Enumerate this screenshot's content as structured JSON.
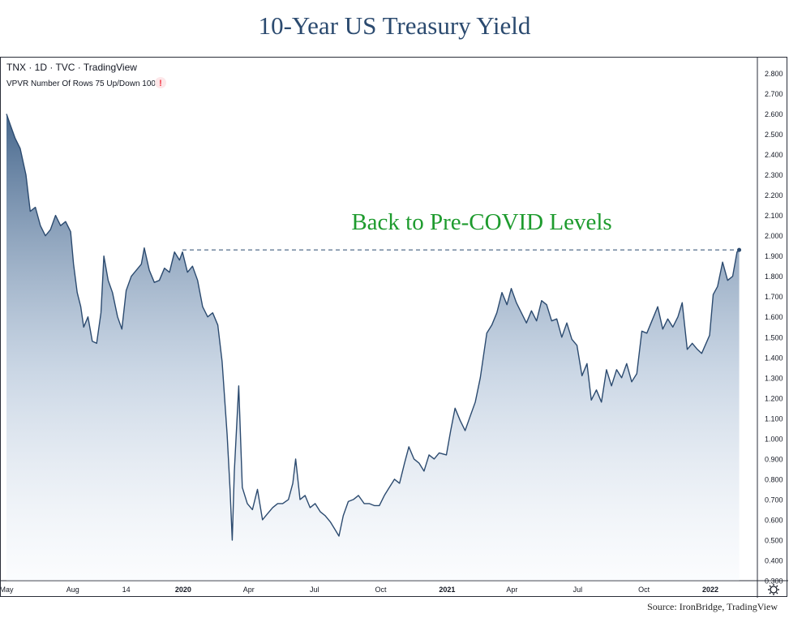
{
  "title": "10-Year US Treasury Yield",
  "source": "Source: IronBridge, TradingView",
  "header": {
    "symbol_line": "TNX · 1D · TVC · TradingView",
    "indicator_line": "VPVR Number Of Rows 75 Up/Down 100",
    "warning_glyph": "!"
  },
  "chart_data": {
    "type": "area",
    "title": "10-Year US Treasury Yield",
    "annotation": "Back to Pre-COVID Levels",
    "reference_level": 1.93,
    "ylim": [
      0.3,
      2.83
    ],
    "y_ticks": [
      "2.800",
      "2.700",
      "2.600",
      "2.500",
      "2.400",
      "2.300",
      "2.200",
      "2.100",
      "2.000",
      "1.900",
      "1.800",
      "1.700",
      "1.600",
      "1.500",
      "1.400",
      "1.300",
      "1.200",
      "1.100",
      "1.000",
      "0.900",
      "0.800",
      "0.700",
      "0.600",
      "0.500",
      "0.400",
      "0.300"
    ],
    "x_ticks": [
      {
        "label": "May",
        "date": "2019-05-01"
      },
      {
        "label": "Aug",
        "date": "2019-08-01"
      },
      {
        "label": "14",
        "date": "2019-10-14"
      },
      {
        "label": "2020",
        "date": "2020-01-01"
      },
      {
        "label": "Apr",
        "date": "2020-04-01"
      },
      {
        "label": "Jul",
        "date": "2020-07-01"
      },
      {
        "label": "Oct",
        "date": "2020-10-01"
      },
      {
        "label": "2021",
        "date": "2021-01-01"
      },
      {
        "label": "Apr",
        "date": "2021-04-01"
      },
      {
        "label": "Jul",
        "date": "2021-07-01"
      },
      {
        "label": "Oct",
        "date": "2021-10-01"
      },
      {
        "label": "2022",
        "date": "2022-01-01"
      }
    ],
    "x_range": [
      "2019-05-01",
      "2022-02-15"
    ],
    "series": [
      {
        "points": [
          [
            "2019-05-01",
            2.6
          ],
          [
            "2019-05-06",
            2.55
          ],
          [
            "2019-05-13",
            2.48
          ],
          [
            "2019-05-20",
            2.43
          ],
          [
            "2019-05-28",
            2.3
          ],
          [
            "2019-06-03",
            2.12
          ],
          [
            "2019-06-10",
            2.14
          ],
          [
            "2019-06-17",
            2.05
          ],
          [
            "2019-06-24",
            2.0
          ],
          [
            "2019-07-01",
            2.03
          ],
          [
            "2019-07-08",
            2.1
          ],
          [
            "2019-07-15",
            2.05
          ],
          [
            "2019-07-22",
            2.07
          ],
          [
            "2019-07-29",
            2.02
          ],
          [
            "2019-08-02",
            1.86
          ],
          [
            "2019-08-07",
            1.72
          ],
          [
            "2019-08-12",
            1.65
          ],
          [
            "2019-08-16",
            1.55
          ],
          [
            "2019-08-22",
            1.6
          ],
          [
            "2019-08-28",
            1.48
          ],
          [
            "2019-09-03",
            1.47
          ],
          [
            "2019-09-09",
            1.62
          ],
          [
            "2019-09-13",
            1.9
          ],
          [
            "2019-09-19",
            1.78
          ],
          [
            "2019-09-25",
            1.72
          ],
          [
            "2019-10-02",
            1.6
          ],
          [
            "2019-10-08",
            1.54
          ],
          [
            "2019-10-14",
            1.73
          ],
          [
            "2019-10-21",
            1.8
          ],
          [
            "2019-10-28",
            1.83
          ],
          [
            "2019-11-04",
            1.86
          ],
          [
            "2019-11-08",
            1.94
          ],
          [
            "2019-11-15",
            1.83
          ],
          [
            "2019-11-22",
            1.77
          ],
          [
            "2019-11-29",
            1.78
          ],
          [
            "2019-12-06",
            1.84
          ],
          [
            "2019-12-13",
            1.82
          ],
          [
            "2019-12-20",
            1.92
          ],
          [
            "2019-12-27",
            1.88
          ],
          [
            "2019-12-31",
            1.92
          ],
          [
            "2020-01-07",
            1.82
          ],
          [
            "2020-01-14",
            1.85
          ],
          [
            "2020-01-21",
            1.78
          ],
          [
            "2020-01-28",
            1.65
          ],
          [
            "2020-02-04",
            1.6
          ],
          [
            "2020-02-11",
            1.62
          ],
          [
            "2020-02-18",
            1.56
          ],
          [
            "2020-02-24",
            1.38
          ],
          [
            "2020-03-02",
            1.02
          ],
          [
            "2020-03-06",
            0.75
          ],
          [
            "2020-03-09",
            0.5
          ],
          [
            "2020-03-12",
            0.84
          ],
          [
            "2020-03-18",
            1.26
          ],
          [
            "2020-03-23",
            0.76
          ],
          [
            "2020-03-30",
            0.68
          ],
          [
            "2020-04-06",
            0.65
          ],
          [
            "2020-04-13",
            0.75
          ],
          [
            "2020-04-20",
            0.6
          ],
          [
            "2020-04-27",
            0.63
          ],
          [
            "2020-05-04",
            0.66
          ],
          [
            "2020-05-11",
            0.68
          ],
          [
            "2020-05-18",
            0.68
          ],
          [
            "2020-05-26",
            0.7
          ],
          [
            "2020-06-01",
            0.78
          ],
          [
            "2020-06-05",
            0.9
          ],
          [
            "2020-06-11",
            0.7
          ],
          [
            "2020-06-18",
            0.72
          ],
          [
            "2020-06-25",
            0.66
          ],
          [
            "2020-07-02",
            0.68
          ],
          [
            "2020-07-09",
            0.64
          ],
          [
            "2020-07-16",
            0.62
          ],
          [
            "2020-07-23",
            0.59
          ],
          [
            "2020-07-30",
            0.55
          ],
          [
            "2020-08-04",
            0.52
          ],
          [
            "2020-08-10",
            0.62
          ],
          [
            "2020-08-17",
            0.69
          ],
          [
            "2020-08-24",
            0.7
          ],
          [
            "2020-08-31",
            0.72
          ],
          [
            "2020-09-08",
            0.68
          ],
          [
            "2020-09-15",
            0.68
          ],
          [
            "2020-09-22",
            0.67
          ],
          [
            "2020-09-29",
            0.67
          ],
          [
            "2020-10-06",
            0.72
          ],
          [
            "2020-10-13",
            0.76
          ],
          [
            "2020-10-20",
            0.8
          ],
          [
            "2020-10-27",
            0.78
          ],
          [
            "2020-11-03",
            0.88
          ],
          [
            "2020-11-09",
            0.96
          ],
          [
            "2020-11-16",
            0.9
          ],
          [
            "2020-11-23",
            0.88
          ],
          [
            "2020-11-30",
            0.84
          ],
          [
            "2020-12-07",
            0.92
          ],
          [
            "2020-12-14",
            0.9
          ],
          [
            "2020-12-21",
            0.93
          ],
          [
            "2020-12-31",
            0.92
          ],
          [
            "2021-01-06",
            1.04
          ],
          [
            "2021-01-12",
            1.15
          ],
          [
            "2021-01-19",
            1.09
          ],
          [
            "2021-01-26",
            1.04
          ],
          [
            "2021-02-02",
            1.11
          ],
          [
            "2021-02-09",
            1.18
          ],
          [
            "2021-02-16",
            1.3
          ],
          [
            "2021-02-25",
            1.52
          ],
          [
            "2021-03-04",
            1.56
          ],
          [
            "2021-03-11",
            1.62
          ],
          [
            "2021-03-18",
            1.72
          ],
          [
            "2021-03-25",
            1.66
          ],
          [
            "2021-03-31",
            1.74
          ],
          [
            "2021-04-07",
            1.67
          ],
          [
            "2021-04-14",
            1.62
          ],
          [
            "2021-04-21",
            1.57
          ],
          [
            "2021-04-28",
            1.63
          ],
          [
            "2021-05-05",
            1.58
          ],
          [
            "2021-05-12",
            1.68
          ],
          [
            "2021-05-19",
            1.66
          ],
          [
            "2021-05-26",
            1.58
          ],
          [
            "2021-06-02",
            1.59
          ],
          [
            "2021-06-09",
            1.5
          ],
          [
            "2021-06-16",
            1.57
          ],
          [
            "2021-06-23",
            1.49
          ],
          [
            "2021-06-30",
            1.46
          ],
          [
            "2021-07-07",
            1.31
          ],
          [
            "2021-07-14",
            1.37
          ],
          [
            "2021-07-20",
            1.19
          ],
          [
            "2021-07-27",
            1.24
          ],
          [
            "2021-08-03",
            1.18
          ],
          [
            "2021-08-10",
            1.34
          ],
          [
            "2021-08-17",
            1.26
          ],
          [
            "2021-08-24",
            1.34
          ],
          [
            "2021-08-31",
            1.3
          ],
          [
            "2021-09-07",
            1.37
          ],
          [
            "2021-09-14",
            1.28
          ],
          [
            "2021-09-21",
            1.32
          ],
          [
            "2021-09-28",
            1.53
          ],
          [
            "2021-10-05",
            1.52
          ],
          [
            "2021-10-12",
            1.58
          ],
          [
            "2021-10-20",
            1.65
          ],
          [
            "2021-10-27",
            1.54
          ],
          [
            "2021-11-03",
            1.59
          ],
          [
            "2021-11-10",
            1.55
          ],
          [
            "2021-11-17",
            1.6
          ],
          [
            "2021-11-23",
            1.67
          ],
          [
            "2021-11-30",
            1.44
          ],
          [
            "2021-12-07",
            1.47
          ],
          [
            "2021-12-14",
            1.44
          ],
          [
            "2021-12-20",
            1.42
          ],
          [
            "2021-12-31",
            1.51
          ],
          [
            "2022-01-05",
            1.71
          ],
          [
            "2022-01-11",
            1.75
          ],
          [
            "2022-01-18",
            1.87
          ],
          [
            "2022-01-25",
            1.78
          ],
          [
            "2022-02-01",
            1.8
          ],
          [
            "2022-02-07",
            1.92
          ],
          [
            "2022-02-10",
            1.93
          ]
        ]
      }
    ]
  },
  "colors": {
    "line": "#2b4a6f",
    "fill_top": "#3d5f86",
    "annotation": "#1e9b2e",
    "title": "#2b4a6f",
    "axis_text": "#131722",
    "warning": "#f23645"
  },
  "icons": {
    "settings": "gear-icon",
    "warning": "warning-icon"
  }
}
